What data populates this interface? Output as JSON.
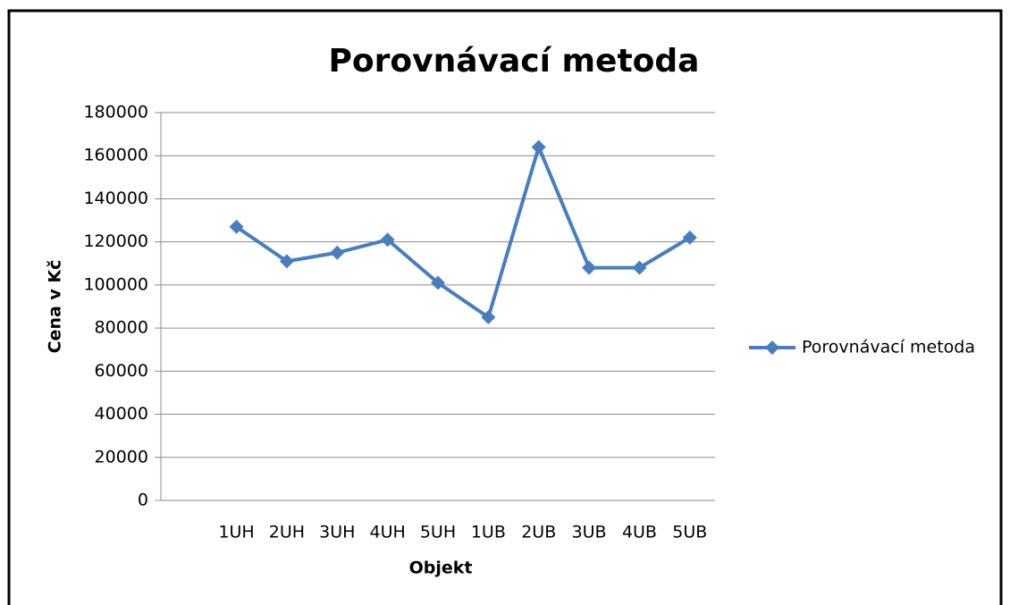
{
  "chart_data": {
    "type": "line",
    "title": "Porovnávací metoda",
    "xlabel": "Objekt",
    "ylabel": "Cena v Kč",
    "categories": [
      null,
      "1UH",
      "2UH",
      "3UH",
      "4UH",
      "5UH",
      "1UB",
      "2UB",
      "3UB",
      "4UB",
      "5UB"
    ],
    "series": [
      {
        "name": "Porovnávací metoda",
        "color": "#4a7ebb",
        "values": [
          null,
          127000,
          111000,
          115000,
          121000,
          101000,
          85000,
          164000,
          108000,
          108000,
          122000
        ]
      }
    ],
    "ylim": [
      0,
      180000
    ],
    "yticks": [
      0,
      20000,
      40000,
      60000,
      80000,
      100000,
      120000,
      140000,
      160000,
      180000
    ],
    "grid": true,
    "legend": "right"
  }
}
